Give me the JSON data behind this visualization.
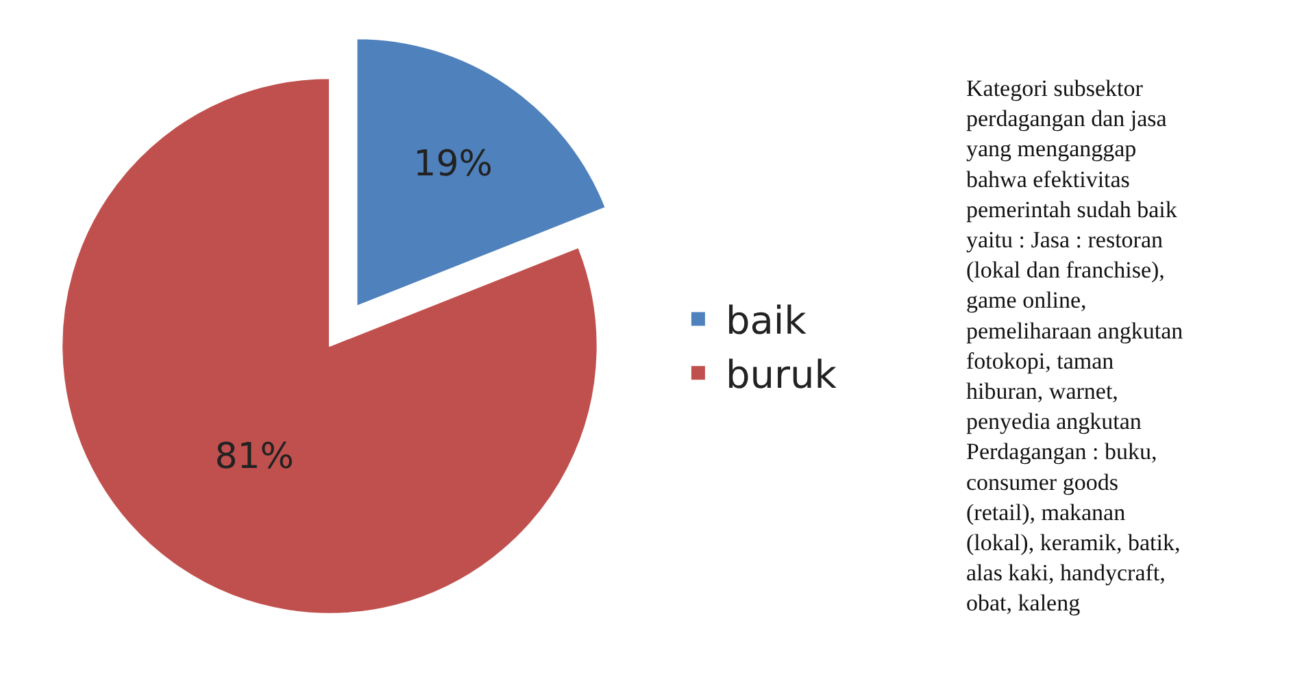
{
  "chart_data": {
    "type": "pie",
    "categories": [
      "baik",
      "buruk"
    ],
    "values": [
      19,
      81
    ],
    "colors": [
      "#4f81bd",
      "#c0504d"
    ],
    "value_labels": [
      "19%",
      "81%"
    ],
    "legend": "right",
    "annotations": [
      "Kategori subsektor\nperdagangan dan jasa\nyang menganggap\nbahwa efektivitas\npemerintah sudah baik\nyaitu : Jasa : restoran\n(lokal dan franchise),\ngame online,\npemeliharaan angkutan\nfotokopi, taman\nhiburan, warnet,\npenyedia angkutan\nPerdagangan : buku,\nconsumer goods\n(retail), makanan\n(lokal), keramik, batik,\nalas kaki, handycraft,\nobat, kaleng"
    ]
  }
}
